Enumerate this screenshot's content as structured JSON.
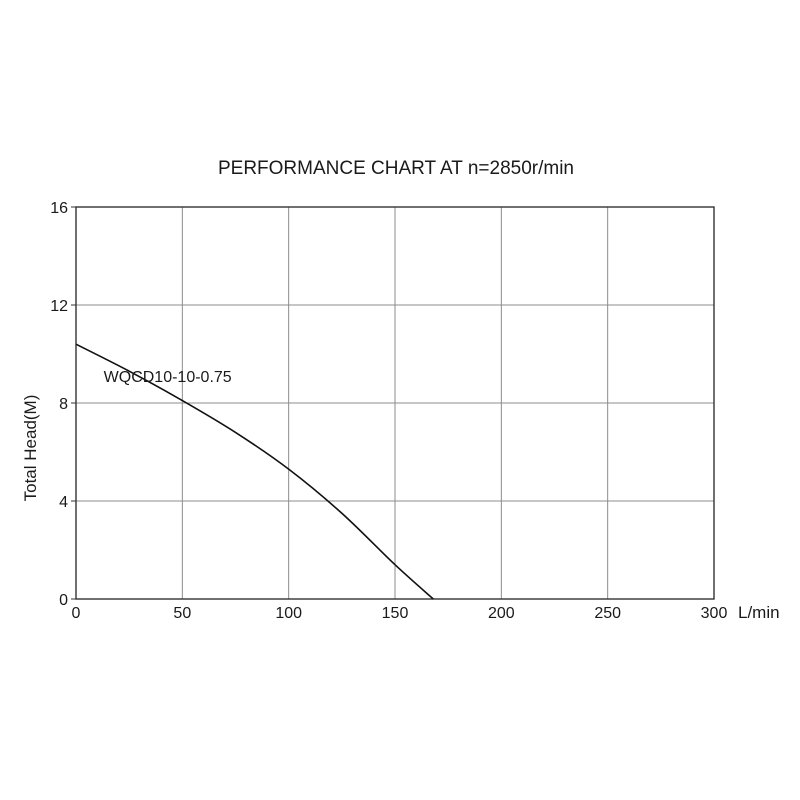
{
  "chart_data": {
    "type": "line",
    "title": "PERFORMANCE CHART AT n=2850r/min",
    "xlabel": "L/min",
    "ylabel": "Total Head(M)",
    "xlim": [
      0,
      300
    ],
    "ylim": [
      0,
      16
    ],
    "x_ticks": [
      0,
      50,
      100,
      150,
      200,
      250,
      300
    ],
    "y_ticks": [
      0,
      4,
      8,
      12,
      16
    ],
    "grid": true,
    "series": [
      {
        "name": "WQCD10-10-0.75",
        "x": [
          0,
          25,
          50,
          75,
          100,
          125,
          150,
          168
        ],
        "y": [
          10.4,
          9.3,
          8.1,
          6.8,
          5.3,
          3.5,
          1.4,
          0
        ]
      }
    ]
  }
}
